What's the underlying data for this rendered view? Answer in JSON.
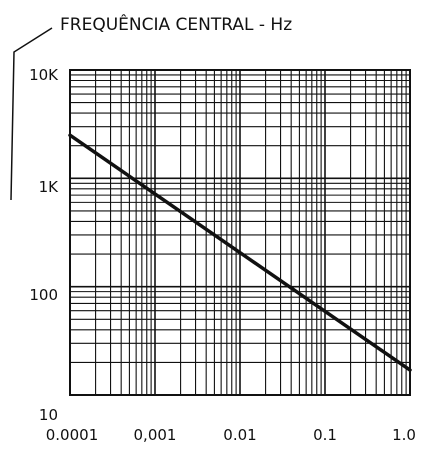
{
  "chart_data": {
    "type": "line",
    "title": "",
    "ylabel": "FREQUÊNCIA CENTRAL - Hz",
    "xlabel": "",
    "x_scale": "log",
    "y_scale": "log",
    "xlim": [
      0.0001,
      1.0
    ],
    "ylim": [
      10,
      10000
    ],
    "x_ticks": [
      "0.0001",
      "0,001",
      "0.01",
      "0.1",
      "1.0"
    ],
    "y_ticks": [
      "10K",
      "1K",
      "100",
      "10"
    ],
    "grid": true,
    "series": [
      {
        "x": [
          0.0001,
          1.0
        ],
        "y": [
          2500,
          17
        ]
      }
    ],
    "colors": {
      "line": "#111111",
      "grid": "#111111",
      "background": "#ffffff"
    }
  }
}
